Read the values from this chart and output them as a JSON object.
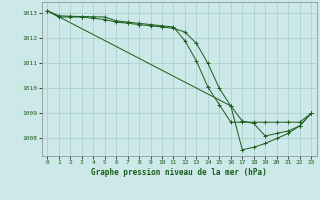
{
  "title": "Graphe pression niveau de la mer (hPa)",
  "background_color": "#cce8e8",
  "grid_color": "#aacccc",
  "line_color": "#1a5c1a",
  "marker_color": "#1a5c1a",
  "xlim": [
    -0.5,
    23.5
  ],
  "ylim_bottom": 1007.3,
  "ylim_top": 1013.45,
  "yticks": [
    1008,
    1009,
    1010,
    1011,
    1012,
    1013
  ],
  "xticks": [
    0,
    1,
    2,
    3,
    4,
    5,
    6,
    7,
    8,
    9,
    10,
    11,
    12,
    13,
    14,
    15,
    16,
    17,
    18,
    19,
    20,
    21,
    22,
    23
  ],
  "series": [
    {
      "x": [
        0,
        1,
        2,
        3,
        4,
        5,
        6,
        7,
        8,
        9,
        10,
        11,
        12,
        13,
        14,
        15,
        16,
        17,
        18,
        19,
        20,
        21,
        22,
        23
      ],
      "y": [
        1013.1,
        1012.85,
        1012.85,
        1012.85,
        1012.8,
        1012.75,
        1012.65,
        1012.6,
        1012.55,
        1012.5,
        1012.45,
        1012.4,
        1012.25,
        1011.8,
        1011.0,
        1010.0,
        1009.3,
        1008.7,
        1008.6,
        1008.1,
        1008.2,
        1008.3,
        1008.5,
        1009.0
      ]
    },
    {
      "x": [
        0,
        1,
        2,
        3,
        4,
        5,
        6,
        7,
        8,
        9,
        10,
        11,
        12,
        13,
        14,
        15,
        16,
        17,
        18,
        19,
        20,
        21,
        22,
        23
      ],
      "y": [
        1013.1,
        1012.9,
        1012.88,
        1012.87,
        1012.86,
        1012.85,
        1012.7,
        1012.65,
        1012.6,
        1012.55,
        1012.5,
        1012.45,
        1011.9,
        1011.1,
        1010.05,
        1009.35,
        1008.65,
        1008.65,
        1008.65,
        1008.65,
        1008.65,
        1008.65,
        1008.65,
        1009.0
      ]
    },
    {
      "x": [
        0,
        16,
        17,
        18,
        19,
        20,
        21,
        22,
        23
      ],
      "y": [
        1013.1,
        1009.3,
        1007.55,
        1007.65,
        1007.8,
        1008.0,
        1008.2,
        1008.5,
        1009.0
      ]
    }
  ]
}
